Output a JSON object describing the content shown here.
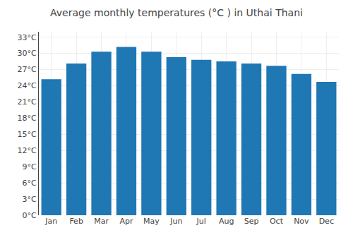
{
  "chart_data": {
    "type": "bar",
    "title": "Average monthly temperatures (°C ) in Uthai Thani",
    "categories": [
      "Jan",
      "Feb",
      "Mar",
      "Apr",
      "May",
      "Jun",
      "Jul",
      "Aug",
      "Sep",
      "Oct",
      "Nov",
      "Dec"
    ],
    "values": [
      25.2,
      28.1,
      30.3,
      31.2,
      30.3,
      29.3,
      28.8,
      28.5,
      28.1,
      27.7,
      26.2,
      24.7
    ],
    "ylim": [
      0,
      34
    ],
    "yticks": [
      {
        "value": 0,
        "label": "0°C"
      },
      {
        "value": 3,
        "label": "3°C"
      },
      {
        "value": 6,
        "label": "6°C"
      },
      {
        "value": 9,
        "label": "9°C"
      },
      {
        "value": 12,
        "label": "12°C"
      },
      {
        "value": 15,
        "label": "15°C"
      },
      {
        "value": 18,
        "label": "18°C"
      },
      {
        "value": 21,
        "label": "21°C"
      },
      {
        "value": 24,
        "label": "24°C"
      },
      {
        "value": 27,
        "label": "27°C"
      },
      {
        "value": 30,
        "label": "30°C"
      },
      {
        "value": 33,
        "label": "33°C"
      }
    ],
    "grid": true
  }
}
